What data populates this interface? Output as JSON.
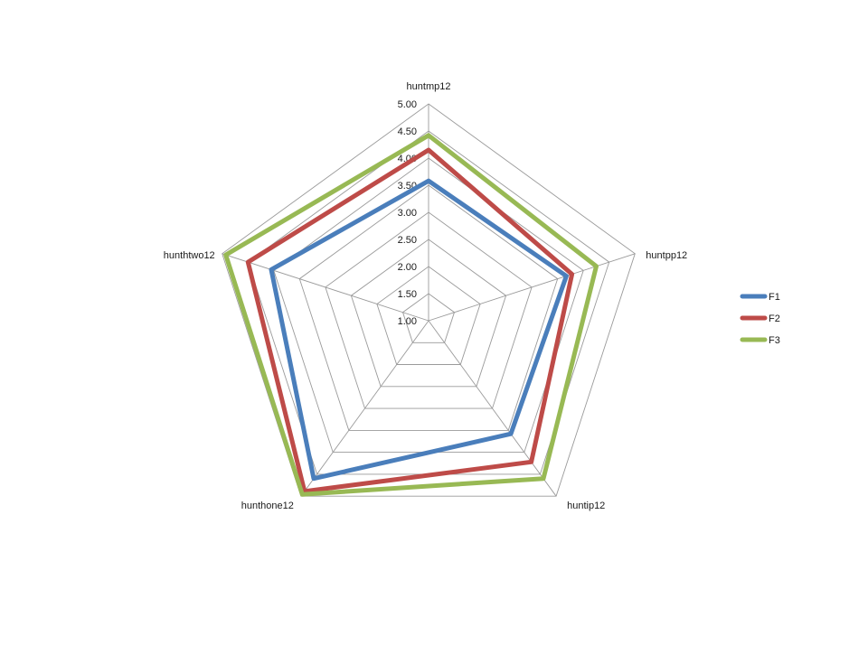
{
  "chart_data": {
    "type": "radar",
    "axes": [
      "huntmp12",
      "huntpp12",
      "huntip12",
      "hunthone12",
      "hunthtwo12"
    ],
    "rlim": [
      1.0,
      5.0
    ],
    "ticks": [
      "1.00",
      "1.50",
      "2.00",
      "2.50",
      "3.00",
      "3.50",
      "4.00",
      "4.50",
      "5.00"
    ],
    "grid": true,
    "legend_position": "right",
    "series": [
      {
        "name": "F1",
        "color": "#4a7ebb",
        "values": [
          3.58,
          3.67,
          3.58,
          4.6,
          4.05
        ]
      },
      {
        "name": "F2",
        "color": "#be4b48",
        "values": [
          4.15,
          3.78,
          4.22,
          4.89,
          4.5
        ]
      },
      {
        "name": "F3",
        "color": "#98b954",
        "values": [
          4.42,
          4.25,
          4.6,
          4.96,
          4.93
        ]
      }
    ]
  }
}
